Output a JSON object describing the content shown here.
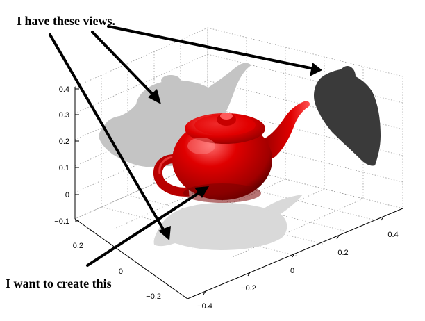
{
  "annotations": {
    "top": "I have these views.",
    "bottom": "I want to create this"
  },
  "axes": {
    "z_ticks": [
      "0.4",
      "0.3",
      "0.2",
      "0.1",
      "0",
      "−0.1"
    ],
    "y_ticks": [
      "0.2",
      "0",
      "−0.2"
    ],
    "x_ticks": [
      "−0.4",
      "−0.2",
      "0",
      "0.2",
      "0.4"
    ]
  },
  "colors": {
    "teapot": "#d40000",
    "teapot_dark": "#6a0000",
    "teapot_light": "#ff6060",
    "shadow_back": "#c4c4c4",
    "shadow_side": "#3a3a3a",
    "shadow_floor": "#d9d9d9"
  }
}
